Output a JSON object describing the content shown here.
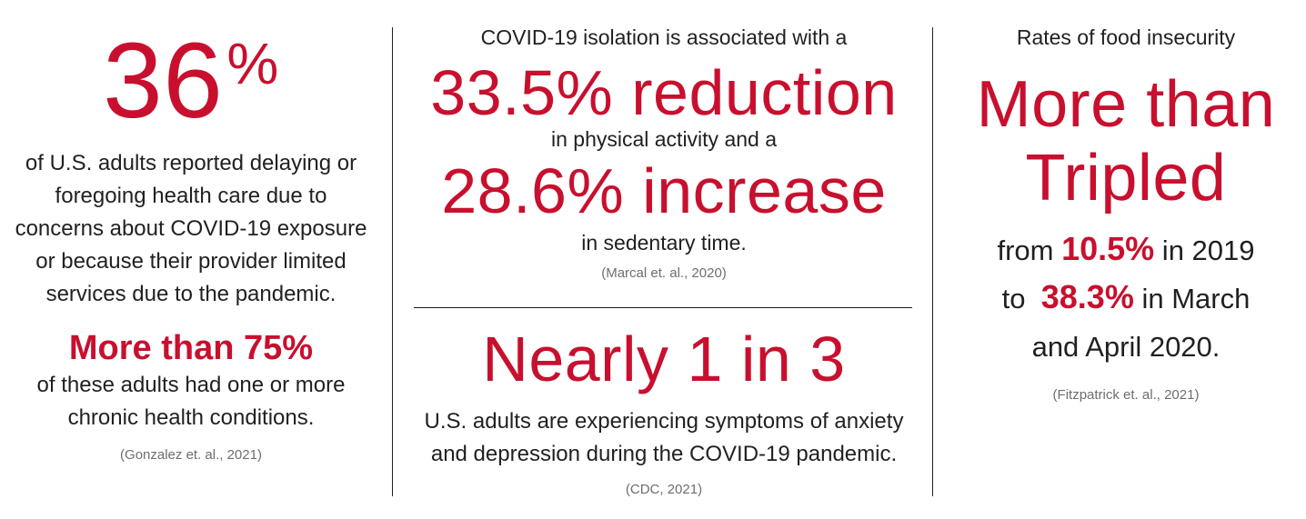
{
  "colors": {
    "accent": "#c8102e",
    "text": "#231f20",
    "citation": "#6d6e71"
  },
  "col1": {
    "big_number": "36",
    "big_percent": "%",
    "body_lines": [
      "of U.S. adults reported delaying or",
      "foregoing health care due to",
      "concerns about COVID-19 exposure",
      "or because their provider limited",
      "services due to the pandemic."
    ],
    "highlight": "More than 75%",
    "body2_lines": [
      "of these adults had one or more",
      "chronic health conditions."
    ],
    "citation": "(Gonzalez et. al., 2021)"
  },
  "col2": {
    "lead": "COVID-19 isolation is associated with a",
    "big1": "33.5% reduction",
    "mid": "in physical activity and a",
    "big2": "28.6% increase",
    "tail": "in sedentary time.",
    "citation1": "(Marcal et. al., 2020)",
    "big3": "Nearly 1 in 3",
    "body_lines": [
      "U.S. adults are experiencing symptoms of anxiety",
      "and depression during the COVID-19 pandemic."
    ],
    "citation2": "(CDC, 2021)"
  },
  "col3": {
    "lead": "Rates of food insecurity",
    "big1": "More than",
    "big2": "Tripled",
    "line1_pre": "from ",
    "line1_val": "10.5%",
    "line1_post": " in 2019",
    "line2_pre": "to  ",
    "line2_val": "38.3%",
    "line2_post": " in March",
    "line3": "and April 2020.",
    "citation": "(Fitzpatrick et. al., 2021)"
  }
}
